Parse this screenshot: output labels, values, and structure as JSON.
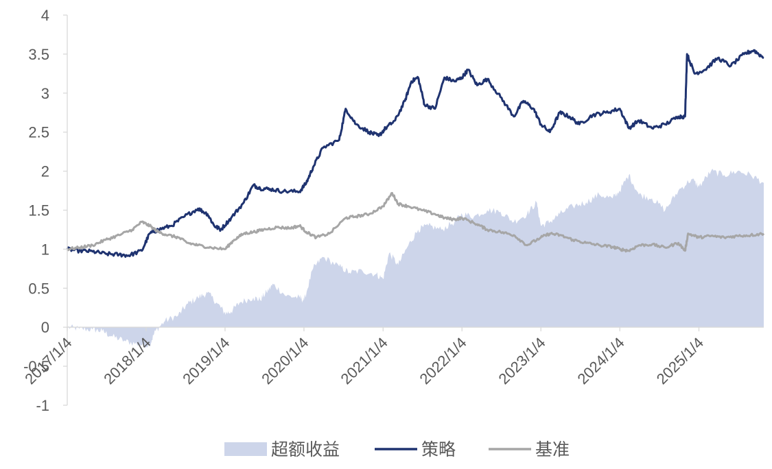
{
  "chart_data": {
    "type": "line",
    "title": "",
    "xlabel": "",
    "ylabel": "",
    "ylim": [
      -1,
      4
    ],
    "xlim": [
      "2017-01-04",
      "2025-10-31"
    ],
    "y_ticks": [
      "4",
      "3.5",
      "3",
      "2.5",
      "2",
      "1.5",
      "1",
      "0.5",
      "0",
      "-0.5",
      "-1"
    ],
    "x_ticks": [
      "2017/1/4",
      "2018/1/4",
      "2019/1/4",
      "2020/1/4",
      "2021/1/4",
      "2022/1/4",
      "2023/1/4",
      "2024/1/4",
      "2025/1/4"
    ],
    "grid": false,
    "legend_position": "bottom",
    "series": [
      {
        "name": "超额收益",
        "type": "area",
        "color": "#cdd5ea",
        "points": [
          [
            "2017-01-04",
            0.0
          ],
          [
            "2017-03-01",
            -0.02
          ],
          [
            "2017-05-01",
            -0.03
          ],
          [
            "2017-06-15",
            -0.05
          ],
          [
            "2017-08-01",
            -0.12
          ],
          [
            "2017-10-01",
            -0.18
          ],
          [
            "2017-12-01",
            -0.22
          ],
          [
            "2018-01-20",
            -0.23
          ],
          [
            "2018-02-15",
            -0.05
          ],
          [
            "2018-04-01",
            0.08
          ],
          [
            "2018-06-01",
            0.15
          ],
          [
            "2018-07-15",
            0.3
          ],
          [
            "2018-09-01",
            0.38
          ],
          [
            "2018-10-15",
            0.44
          ],
          [
            "2018-12-01",
            0.3
          ],
          [
            "2019-01-04",
            0.18
          ],
          [
            "2019-02-01",
            0.2
          ],
          [
            "2019-03-15",
            0.32
          ],
          [
            "2019-05-15",
            0.38
          ],
          [
            "2019-06-15",
            0.35
          ],
          [
            "2019-07-15",
            0.45
          ],
          [
            "2019-08-15",
            0.55
          ],
          [
            "2019-10-15",
            0.4
          ],
          [
            "2019-12-15",
            0.38
          ],
          [
            "2020-01-04",
            0.34
          ],
          [
            "2020-02-15",
            0.75
          ],
          [
            "2020-04-01",
            0.9
          ],
          [
            "2020-06-15",
            0.78
          ],
          [
            "2020-08-01",
            0.7
          ],
          [
            "2020-10-01",
            0.72
          ],
          [
            "2020-12-01",
            0.68
          ],
          [
            "2021-01-04",
            0.62
          ],
          [
            "2021-02-01",
            0.95
          ],
          [
            "2021-03-15",
            0.8
          ],
          [
            "2021-05-01",
            1.05
          ],
          [
            "2021-06-15",
            1.25
          ],
          [
            "2021-08-01",
            1.3
          ],
          [
            "2021-10-01",
            1.25
          ],
          [
            "2021-12-01",
            1.35
          ],
          [
            "2022-01-04",
            1.45
          ],
          [
            "2022-03-01",
            1.42
          ],
          [
            "2022-05-01",
            1.5
          ],
          [
            "2022-07-01",
            1.48
          ],
          [
            "2022-09-01",
            1.35
          ],
          [
            "2022-11-01",
            1.45
          ],
          [
            "2022-12-15",
            1.6
          ],
          [
            "2023-01-04",
            1.3
          ],
          [
            "2023-02-15",
            1.35
          ],
          [
            "2023-04-01",
            1.45
          ],
          [
            "2023-06-01",
            1.55
          ],
          [
            "2023-08-01",
            1.6
          ],
          [
            "2023-10-01",
            1.7
          ],
          [
            "2023-12-01",
            1.65
          ],
          [
            "2024-01-04",
            1.75
          ],
          [
            "2024-02-15",
            1.95
          ],
          [
            "2024-04-01",
            1.7
          ],
          [
            "2024-06-01",
            1.65
          ],
          [
            "2024-08-01",
            1.5
          ],
          [
            "2024-10-01",
            1.75
          ],
          [
            "2024-12-01",
            1.9
          ],
          [
            "2025-01-04",
            1.8
          ],
          [
            "2025-03-01",
            2.0
          ],
          [
            "2025-05-01",
            1.95
          ],
          [
            "2025-07-01",
            2.0
          ],
          [
            "2025-09-01",
            1.95
          ],
          [
            "2025-10-31",
            1.85
          ]
        ]
      },
      {
        "name": "策略",
        "type": "line",
        "color": "#1f3370",
        "points": [
          [
            "2017-01-04",
            1.0
          ],
          [
            "2017-03-01",
            0.98
          ],
          [
            "2017-05-01",
            0.97
          ],
          [
            "2017-07-01",
            0.94
          ],
          [
            "2017-09-01",
            0.93
          ],
          [
            "2017-10-15",
            0.92
          ],
          [
            "2017-12-15",
            0.98
          ],
          [
            "2018-01-20",
            1.2
          ],
          [
            "2018-03-01",
            1.25
          ],
          [
            "2018-05-01",
            1.3
          ],
          [
            "2018-07-01",
            1.42
          ],
          [
            "2018-09-01",
            1.52
          ],
          [
            "2018-10-15",
            1.45
          ],
          [
            "2018-11-15",
            1.3
          ],
          [
            "2018-12-15",
            1.25
          ],
          [
            "2019-02-01",
            1.4
          ],
          [
            "2019-04-01",
            1.6
          ],
          [
            "2019-05-15",
            1.82
          ],
          [
            "2019-06-15",
            1.78
          ],
          [
            "2019-08-01",
            1.77
          ],
          [
            "2019-10-01",
            1.74
          ],
          [
            "2019-12-15",
            1.74
          ],
          [
            "2020-01-15",
            1.85
          ],
          [
            "2020-02-15",
            2.05
          ],
          [
            "2020-04-01",
            2.3
          ],
          [
            "2020-06-15",
            2.4
          ],
          [
            "2020-07-15",
            2.8
          ],
          [
            "2020-09-01",
            2.6
          ],
          [
            "2020-11-01",
            2.5
          ],
          [
            "2020-12-15",
            2.45
          ],
          [
            "2021-01-15",
            2.55
          ],
          [
            "2021-03-01",
            2.65
          ],
          [
            "2021-04-15",
            2.9
          ],
          [
            "2021-05-15",
            3.15
          ],
          [
            "2021-06-15",
            3.2
          ],
          [
            "2021-07-15",
            2.85
          ],
          [
            "2021-09-01",
            2.8
          ],
          [
            "2021-10-15",
            3.2
          ],
          [
            "2021-12-01",
            3.15
          ],
          [
            "2022-01-04",
            3.2
          ],
          [
            "2022-02-01",
            3.3
          ],
          [
            "2022-03-15",
            3.1
          ],
          [
            "2022-05-01",
            3.18
          ],
          [
            "2022-07-01",
            2.95
          ],
          [
            "2022-09-01",
            2.7
          ],
          [
            "2022-10-15",
            2.9
          ],
          [
            "2022-12-01",
            2.8
          ],
          [
            "2023-01-04",
            2.6
          ],
          [
            "2023-02-15",
            2.5
          ],
          [
            "2023-04-01",
            2.75
          ],
          [
            "2023-05-15",
            2.7
          ],
          [
            "2023-07-01",
            2.6
          ],
          [
            "2023-09-01",
            2.72
          ],
          [
            "2023-11-01",
            2.75
          ],
          [
            "2024-01-04",
            2.8
          ],
          [
            "2024-02-15",
            2.55
          ],
          [
            "2024-04-01",
            2.65
          ],
          [
            "2024-06-01",
            2.55
          ],
          [
            "2024-08-01",
            2.6
          ],
          [
            "2024-10-01",
            2.7
          ],
          [
            "2024-11-01",
            2.7
          ],
          [
            "2024-11-10",
            3.5
          ],
          [
            "2024-12-15",
            3.25
          ],
          [
            "2025-02-01",
            3.3
          ],
          [
            "2025-04-01",
            3.45
          ],
          [
            "2025-06-01",
            3.35
          ],
          [
            "2025-08-01",
            3.5
          ],
          [
            "2025-09-15",
            3.55
          ],
          [
            "2025-10-31",
            3.45
          ]
        ]
      },
      {
        "name": "基准",
        "type": "line",
        "color": "#a6a6a6",
        "points": [
          [
            "2017-01-04",
            1.0
          ],
          [
            "2017-03-01",
            1.02
          ],
          [
            "2017-05-01",
            1.05
          ],
          [
            "2017-07-01",
            1.12
          ],
          [
            "2017-09-01",
            1.18
          ],
          [
            "2017-11-01",
            1.25
          ],
          [
            "2017-12-15",
            1.35
          ],
          [
            "2018-01-20",
            1.3
          ],
          [
            "2018-03-01",
            1.22
          ],
          [
            "2018-04-15",
            1.18
          ],
          [
            "2018-06-01",
            1.15
          ],
          [
            "2018-07-15",
            1.08
          ],
          [
            "2018-09-01",
            1.05
          ],
          [
            "2018-11-01",
            1.02
          ],
          [
            "2019-01-04",
            1.0
          ],
          [
            "2019-02-15",
            1.12
          ],
          [
            "2019-04-01",
            1.2
          ],
          [
            "2019-05-15",
            1.22
          ],
          [
            "2019-07-01",
            1.25
          ],
          [
            "2019-09-01",
            1.28
          ],
          [
            "2019-11-01",
            1.27
          ],
          [
            "2019-12-15",
            1.3
          ],
          [
            "2020-01-15",
            1.22
          ],
          [
            "2020-03-01",
            1.15
          ],
          [
            "2020-05-01",
            1.2
          ],
          [
            "2020-07-15",
            1.4
          ],
          [
            "2020-09-01",
            1.42
          ],
          [
            "2020-11-01",
            1.45
          ],
          [
            "2021-01-04",
            1.55
          ],
          [
            "2021-02-15",
            1.72
          ],
          [
            "2021-03-15",
            1.58
          ],
          [
            "2021-05-01",
            1.55
          ],
          [
            "2021-07-01",
            1.5
          ],
          [
            "2021-09-01",
            1.45
          ],
          [
            "2021-10-15",
            1.4
          ],
          [
            "2021-12-01",
            1.38
          ],
          [
            "2022-01-04",
            1.4
          ],
          [
            "2022-03-15",
            1.32
          ],
          [
            "2022-05-01",
            1.25
          ],
          [
            "2022-07-01",
            1.22
          ],
          [
            "2022-09-01",
            1.18
          ],
          [
            "2022-11-01",
            1.05
          ],
          [
            "2023-01-04",
            1.15
          ],
          [
            "2023-02-15",
            1.2
          ],
          [
            "2023-04-01",
            1.18
          ],
          [
            "2023-06-01",
            1.12
          ],
          [
            "2023-08-01",
            1.08
          ],
          [
            "2023-10-01",
            1.05
          ],
          [
            "2023-12-01",
            1.03
          ],
          [
            "2024-01-04",
            1.0
          ],
          [
            "2024-02-15",
            0.98
          ],
          [
            "2024-04-01",
            1.05
          ],
          [
            "2024-06-01",
            1.06
          ],
          [
            "2024-08-01",
            1.02
          ],
          [
            "2024-10-01",
            1.08
          ],
          [
            "2024-11-01",
            0.98
          ],
          [
            "2024-11-15",
            1.2
          ],
          [
            "2025-01-04",
            1.15
          ],
          [
            "2025-03-01",
            1.17
          ],
          [
            "2025-05-01",
            1.15
          ],
          [
            "2025-07-01",
            1.17
          ],
          [
            "2025-09-01",
            1.18
          ],
          [
            "2025-10-31",
            1.2
          ]
        ]
      }
    ]
  }
}
